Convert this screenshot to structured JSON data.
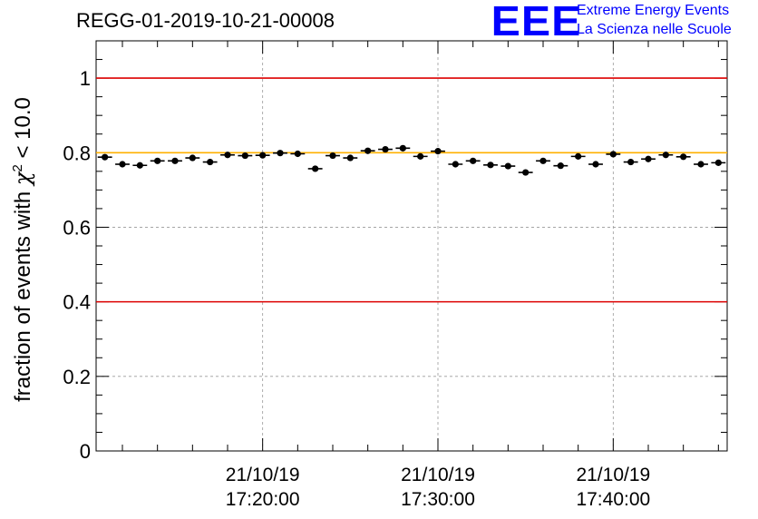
{
  "header": {
    "title": "REGG-01-2019-10-21-00008",
    "logo_text": "EEE",
    "brand_line1": "Extreme Energy Events",
    "brand_line2": "La Scienza nelle Scuole"
  },
  "colors": {
    "threshold_red": "#dd0000",
    "reference_yellow": "#ffb000",
    "brand_blue": "#0000ff",
    "grid": "#9a9a9a"
  },
  "chart_data": {
    "type": "scatter",
    "title": "REGG-01-2019-10-21-00008",
    "xlabel": "",
    "ylabel_prefix": "fraction of events with ",
    "ylabel_symbol": "χ",
    "ylabel_power": "2",
    "ylabel_suffix": " < 10.0",
    "x_unit": "minutes after 21/10/19 17:00:00",
    "xlim": [
      10.5,
      46.5
    ],
    "ylim": [
      0,
      1.1
    ],
    "yticks": [
      0,
      0.2,
      0.4,
      0.6,
      0.8,
      1
    ],
    "ytick_labels": [
      "0",
      "0.2",
      "0.4",
      "0.6",
      "0.8",
      "1"
    ],
    "xticks": [
      {
        "x": 20,
        "date": "21/10/19",
        "time": "17:20:00"
      },
      {
        "x": 30,
        "date": "21/10/19",
        "time": "17:30:00"
      },
      {
        "x": 40,
        "date": "21/10/19",
        "time": "17:40:00"
      }
    ],
    "grid": true,
    "bin_width_min": 1.0,
    "reference_lines": [
      {
        "name": "upper-threshold",
        "y": 1.0,
        "color": "#dd0000"
      },
      {
        "name": "lower-threshold",
        "y": 0.4,
        "color": "#dd0000"
      },
      {
        "name": "reference",
        "y": 0.8,
        "color": "#ffb000"
      }
    ],
    "series": [
      {
        "name": "fraction",
        "x": [
          11,
          12,
          13,
          14,
          15,
          16,
          17,
          18,
          19,
          20,
          21,
          22,
          23,
          24,
          25,
          26,
          27,
          28,
          29,
          30,
          31,
          32,
          33,
          34,
          35,
          36,
          37,
          38,
          39,
          40,
          41,
          42,
          43,
          44,
          45,
          46
        ],
        "values": [
          0.788,
          0.769,
          0.766,
          0.778,
          0.778,
          0.786,
          0.775,
          0.794,
          0.792,
          0.793,
          0.799,
          0.797,
          0.757,
          0.792,
          0.786,
          0.805,
          0.809,
          0.812,
          0.79,
          0.804,
          0.769,
          0.778,
          0.767,
          0.764,
          0.747,
          0.778,
          0.765,
          0.79,
          0.769,
          0.796,
          0.775,
          0.783,
          0.794,
          0.789,
          0.769,
          0.773
        ],
        "errors": [
          0.006,
          0.006,
          0.006,
          0.006,
          0.006,
          0.006,
          0.006,
          0.006,
          0.006,
          0.006,
          0.006,
          0.006,
          0.006,
          0.006,
          0.006,
          0.006,
          0.006,
          0.006,
          0.006,
          0.006,
          0.006,
          0.006,
          0.006,
          0.006,
          0.006,
          0.006,
          0.006,
          0.006,
          0.006,
          0.006,
          0.006,
          0.006,
          0.006,
          0.006,
          0.006,
          0.006
        ]
      }
    ]
  }
}
